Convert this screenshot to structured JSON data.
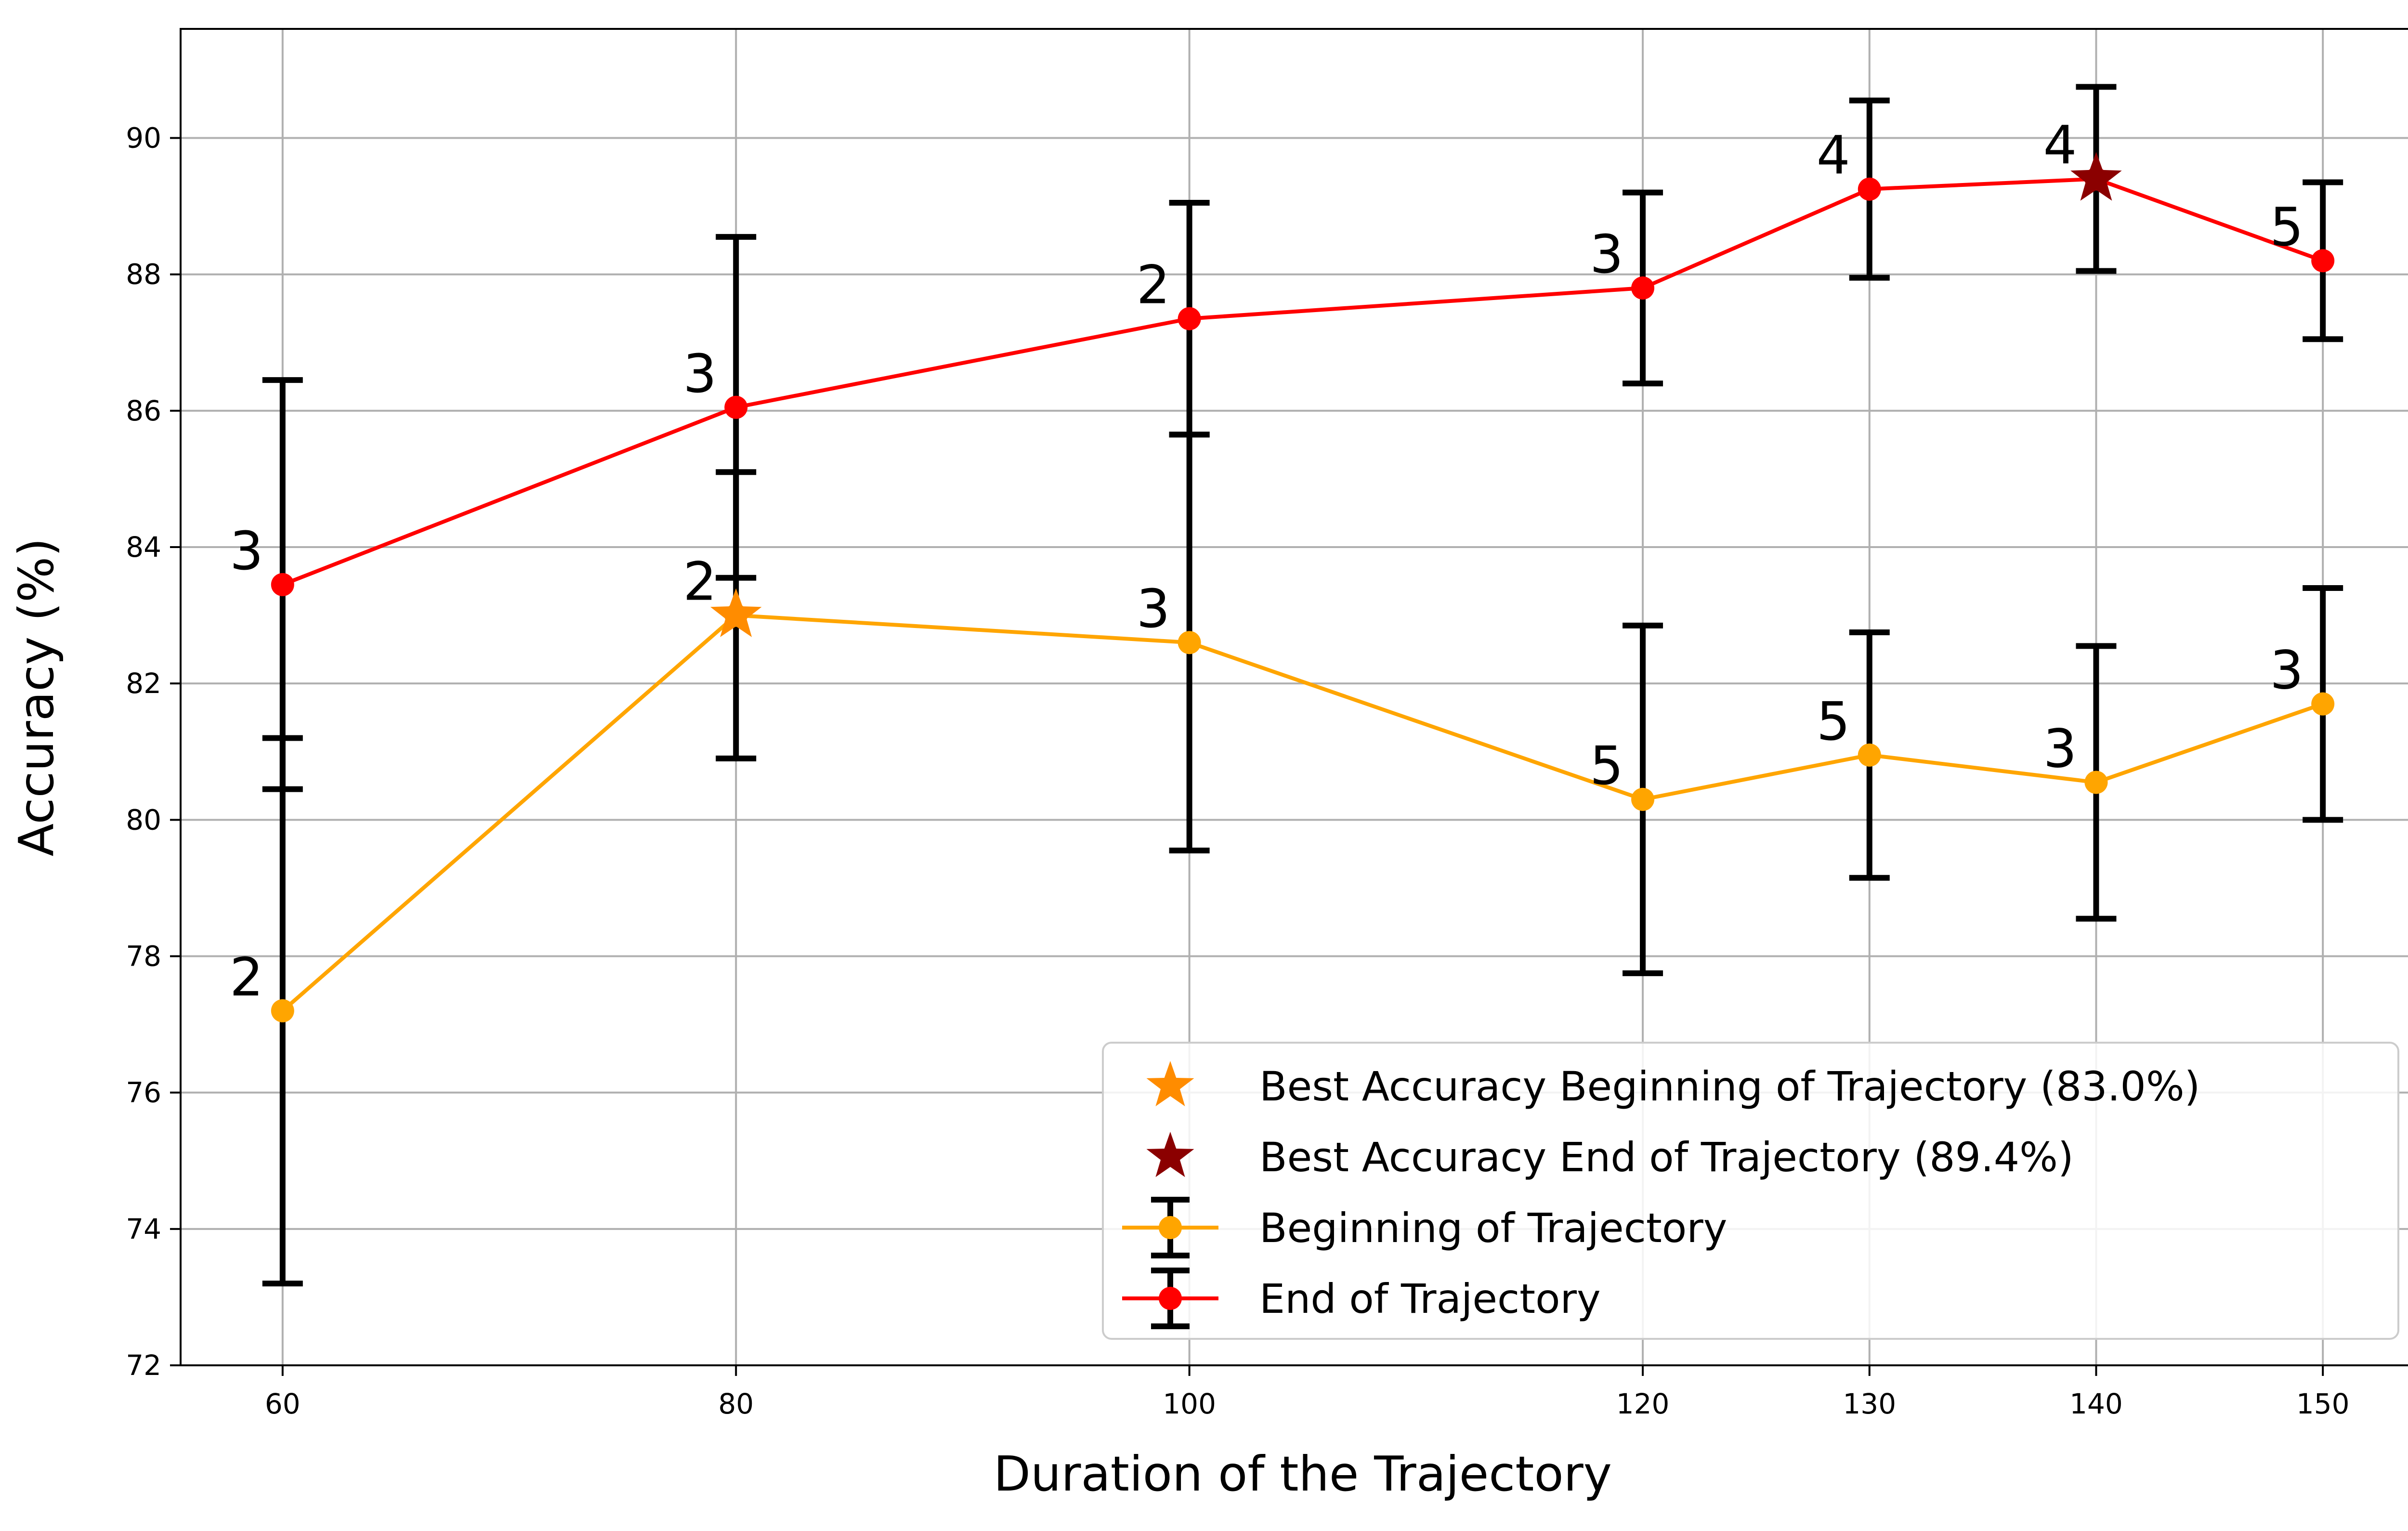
{
  "chart_data": {
    "type": "line",
    "xlabel": "Duration of the Trajectory",
    "ylabel": "Accuracy (%)",
    "xlim": [
      55.5,
      154.5
    ],
    "ylim": [
      72,
      91.6
    ],
    "x_ticks": [
      60,
      80,
      100,
      120,
      130,
      140,
      150
    ],
    "y_ticks": [
      72,
      74,
      76,
      78,
      80,
      82,
      84,
      86,
      88,
      90
    ],
    "grid": true,
    "legend_position": "lower-right",
    "colors": {
      "beginning": "#FFA500",
      "end": "#FF0000",
      "errorbar": "#000000",
      "best_beginning": "#FF8C00",
      "best_end": "#8B0000",
      "grid": "#B0B0B0"
    },
    "series": [
      {
        "name": "Beginning of Trajectory",
        "key": "beginning",
        "x": [
          60,
          80,
          100,
          120,
          130,
          140,
          150
        ],
        "y": [
          77.2,
          83.0,
          82.6,
          80.3,
          80.95,
          80.55,
          81.7
        ],
        "yerr": [
          4.0,
          2.1,
          3.05,
          2.55,
          1.8,
          2.0,
          1.7
        ],
        "point_labels": [
          "2",
          "2",
          "3",
          "5",
          "5",
          "3",
          "3"
        ]
      },
      {
        "name": "End of Trajectory",
        "key": "end",
        "x": [
          60,
          80,
          100,
          120,
          130,
          140,
          150
        ],
        "y": [
          83.45,
          86.05,
          87.35,
          87.8,
          89.25,
          89.4,
          88.2
        ],
        "yerr": [
          3.0,
          2.5,
          1.7,
          1.4,
          1.3,
          1.35,
          1.15
        ],
        "point_labels": [
          "3",
          "3",
          "2",
          "3",
          "4",
          "4",
          "5"
        ]
      }
    ],
    "best_points": [
      {
        "name": "Best Accuracy Beginning of Trajectory (83.0%)",
        "key": "best_beginning",
        "x": 80,
        "y": 83.0
      },
      {
        "name": "Best Accuracy End of Trajectory (89.4%)",
        "key": "best_end",
        "x": 140,
        "y": 89.4
      }
    ]
  }
}
